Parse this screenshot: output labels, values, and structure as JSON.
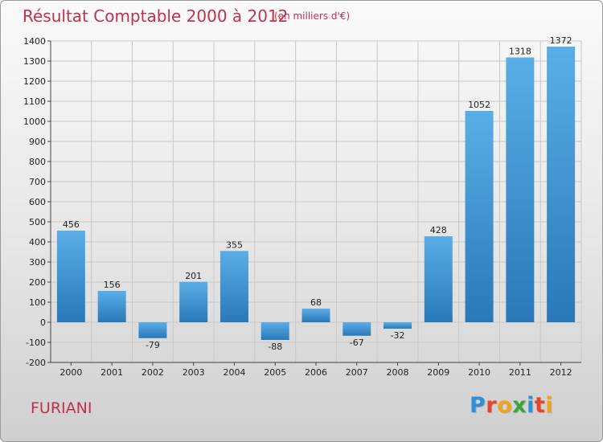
{
  "header": {
    "title": "Résultat Comptable 2000 à 2012",
    "unit": "(en milliers d'€)"
  },
  "footer": {
    "commune": "FURIANI",
    "logo_text": "Proxiti",
    "logo_colors": [
      "#2f8fd8",
      "#e8442b",
      "#f5a21b",
      "#3aa63a",
      "#2f8fd8",
      "#e8442b",
      "#f5a21b"
    ]
  },
  "colors": {
    "bar_light": "#5aaee6",
    "bar_dark": "#2a78b8",
    "grid": "#c8c8c8",
    "text": "#222222",
    "accent": "#c0314e"
  },
  "chart_data": {
    "type": "bar",
    "categories": [
      "2000",
      "2001",
      "2002",
      "2003",
      "2004",
      "2005",
      "2006",
      "2007",
      "2008",
      "2009",
      "2010",
      "2011",
      "2012"
    ],
    "values": [
      456,
      156,
      -79,
      201,
      355,
      -88,
      68,
      -67,
      -32,
      428,
      1052,
      1318,
      1372
    ],
    "ylim": [
      -200,
      1400
    ],
    "yticks": [
      -200,
      -100,
      0,
      100,
      200,
      300,
      400,
      500,
      600,
      700,
      800,
      900,
      1000,
      1100,
      1200,
      1300,
      1400
    ],
    "grid": true,
    "xlabel": "",
    "ylabel": ""
  }
}
